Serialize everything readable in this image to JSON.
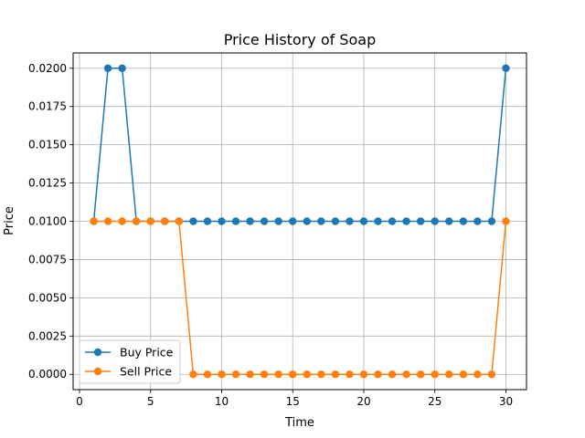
{
  "chart_data": {
    "type": "line",
    "title": "Price History of Soap",
    "xlabel": "Time",
    "ylabel": "Price",
    "xlim": [
      -0.45,
      31.45
    ],
    "ylim": [
      -0.001,
      0.021
    ],
    "xticks": [
      0,
      5,
      10,
      15,
      20,
      25,
      30
    ],
    "xtick_labels": [
      "0",
      "5",
      "10",
      "15",
      "20",
      "25",
      "30"
    ],
    "yticks": [
      0,
      0.0025,
      0.005,
      0.0075,
      0.01,
      0.0125,
      0.015,
      0.0175,
      0.02
    ],
    "ytick_labels": [
      "0.0000",
      "0.0025",
      "0.0050",
      "0.0075",
      "0.0100",
      "0.0125",
      "0.0150",
      "0.0175",
      "0.0200"
    ],
    "grid": true,
    "legend_position": "lower-left",
    "x": [
      1,
      2,
      3,
      4,
      5,
      6,
      7,
      8,
      9,
      10,
      11,
      12,
      13,
      14,
      15,
      16,
      17,
      18,
      19,
      20,
      21,
      22,
      23,
      24,
      25,
      26,
      27,
      28,
      29,
      30
    ],
    "series": [
      {
        "name": "Buy Price",
        "color": "#1f77b4",
        "values": [
          0.01,
          0.02,
          0.02,
          0.01,
          0.01,
          0.01,
          0.01,
          0.01,
          0.01,
          0.01,
          0.01,
          0.01,
          0.01,
          0.01,
          0.01,
          0.01,
          0.01,
          0.01,
          0.01,
          0.01,
          0.01,
          0.01,
          0.01,
          0.01,
          0.01,
          0.01,
          0.01,
          0.01,
          0.01,
          0.02
        ]
      },
      {
        "name": "Sell Price",
        "color": "#ff7f0e",
        "values": [
          0.01,
          0.01,
          0.01,
          0.01,
          0.01,
          0.01,
          0.01,
          0,
          0,
          0,
          0,
          0,
          0,
          0,
          0,
          0,
          0,
          0,
          0,
          0,
          0,
          0,
          0,
          0,
          0,
          0,
          0,
          0,
          0,
          0.01
        ]
      }
    ]
  }
}
